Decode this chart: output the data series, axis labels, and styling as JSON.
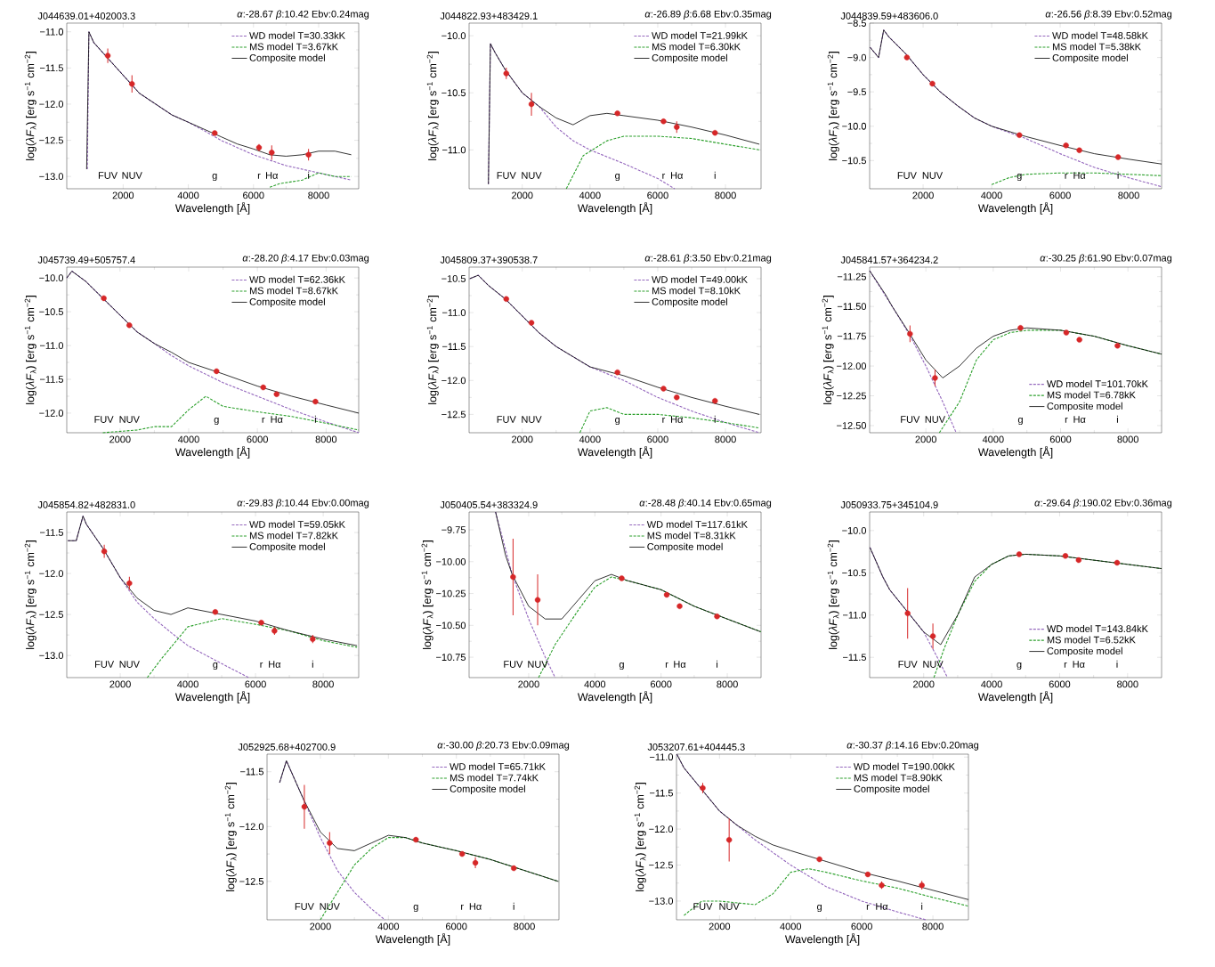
{
  "chart_data": [
    {
      "type": "line",
      "title": "J044639.01+402003.3",
      "subtitle": "*α*:-28.67 *β*:10.42 Ebv:0.24mag",
      "xlabel": "Wavelength [Å]",
      "ylabel": "log(*λF*$_{λ}$) [erg s$^{−1}$ cm$^{−2}$]",
      "xlim": [
        270,
        9230
      ],
      "ylim": [
        -13.17,
        -10.88
      ],
      "xticks": [
        2000,
        4000,
        6000,
        8000
      ],
      "yticks": [
        {
          "value": -13.0,
          "label": "−13.0"
        },
        {
          "value": -12.5,
          "label": "−12.5"
        },
        {
          "value": -12.0,
          "label": "−12.0"
        },
        {
          "value": -11.5,
          "label": "−11.5"
        },
        {
          "value": -11.0,
          "label": "−11.0"
        }
      ],
      "legend": "top right",
      "series": [
        {
          "type": "line",
          "name": "WD model T=30.33kK",
          "color": "#9467bd",
          "line_style": "dashed",
          "x": [
            900,
            950,
            1100,
            1500,
            2000,
            2500,
            3000,
            3500,
            4000,
            4500,
            5000,
            6000,
            7000,
            8000,
            9000
          ],
          "values": [
            -12.9,
            -11.0,
            -11.15,
            -11.35,
            -11.6,
            -11.85,
            -12.0,
            -12.15,
            -12.25,
            -12.37,
            -12.5,
            -12.7,
            -12.85,
            -12.95,
            -13.05
          ]
        },
        {
          "type": "line",
          "name": "MS model T=3.67kK",
          "color": "#2ca02c",
          "line_style": "dashed",
          "x": [
            6500,
            6800,
            7500,
            8000,
            8500,
            9000
          ],
          "values": [
            -13.15,
            -13.1,
            -13.05,
            -12.95,
            -13.0,
            -13.0
          ]
        },
        {
          "type": "line",
          "name": "Composite model",
          "color": "#000000",
          "line_style": "solid",
          "x": [
            880,
            950,
            1100,
            1500,
            2000,
            2500,
            3000,
            3500,
            4000,
            4500,
            5000,
            5500,
            6000,
            6500,
            7000,
            7500,
            8000,
            8500,
            9000
          ],
          "values": [
            -12.9,
            -11.0,
            -11.15,
            -11.35,
            -11.6,
            -11.85,
            -12.0,
            -12.15,
            -12.25,
            -12.35,
            -12.45,
            -12.55,
            -12.62,
            -12.7,
            -12.72,
            -12.7,
            -12.65,
            -12.65,
            -12.7
          ]
        },
        {
          "type": "scatter",
          "color": "#d62728",
          "x": [
            1528,
            2271,
            4810,
            6170,
            6560,
            7690
          ],
          "values": [
            -11.33,
            -11.72,
            -12.4,
            -12.6,
            -12.67,
            -12.7
          ],
          "errors": [
            0.1,
            0.12,
            null,
            0.05,
            0.1,
            0.08
          ]
        }
      ],
      "annotations": [
        "FUV",
        "NUV",
        "g",
        "r",
        "Hα",
        "i"
      ]
    },
    {
      "type": "line",
      "title": "J044822.93+483429.1",
      "subtitle": "*α*:-26.89 *β*:6.68 Ebv:0.35mag",
      "xlabel": "Wavelength [Å]",
      "ylabel": "log(*λF*$_{λ}$) [erg s$^{−1}$ cm$^{−2}$]",
      "xlim": [
        430,
        9050
      ],
      "ylim": [
        -11.34,
        -9.89
      ],
      "xticks": [
        2000,
        4000,
        6000,
        8000
      ],
      "yticks": [
        {
          "value": -11.0,
          "label": "−11.0"
        },
        {
          "value": -10.5,
          "label": "−10.5"
        },
        {
          "value": -10.0,
          "label": "−10.0"
        }
      ],
      "legend": "top right",
      "series": [
        {
          "type": "line",
          "name": "WD model T=21.99kK",
          "color": "#9467bd",
          "line_style": "dashed",
          "x": [
            1000,
            1060,
            1200,
            1500,
            2000,
            2500,
            3000,
            3500,
            4000,
            5000,
            6000,
            6500
          ],
          "values": [
            -11.3,
            -10.07,
            -10.15,
            -10.3,
            -10.5,
            -10.62,
            -10.8,
            -10.92,
            -11.0,
            -11.12,
            -11.25,
            -11.34
          ]
        },
        {
          "type": "line",
          "name": "MS model T=6.30kK",
          "color": "#2ca02c",
          "line_style": "dashed",
          "x": [
            3300,
            3800,
            4500,
            5000,
            6000,
            7000,
            8000,
            9000
          ],
          "values": [
            -11.34,
            -11.05,
            -10.92,
            -10.88,
            -10.88,
            -10.9,
            -10.95,
            -11.0
          ]
        },
        {
          "type": "line",
          "name": "Composite model",
          "color": "#000000",
          "line_style": "solid",
          "x": [
            1000,
            1060,
            1200,
            1500,
            2000,
            2500,
            3000,
            3500,
            4000,
            4500,
            5000,
            6000,
            7000,
            8000,
            9000
          ],
          "values": [
            -11.3,
            -10.07,
            -10.15,
            -10.3,
            -10.5,
            -10.62,
            -10.72,
            -10.78,
            -10.7,
            -10.68,
            -10.7,
            -10.74,
            -10.8,
            -10.87,
            -10.95
          ]
        },
        {
          "type": "scatter",
          "color": "#d62728",
          "x": [
            1528,
            2271,
            4810,
            6170,
            6560,
            7690
          ],
          "values": [
            -10.33,
            -10.6,
            -10.68,
            -10.75,
            -10.8,
            -10.85
          ],
          "errors": [
            0.05,
            0.1,
            null,
            null,
            0.05,
            null
          ]
        }
      ],
      "annotations": [
        "FUV",
        "NUV",
        "g",
        "r",
        "Hα",
        "i"
      ]
    },
    {
      "type": "line",
      "title": "J044839.59+483606.0",
      "subtitle": "*α*:-26.56 *β*:8.39 Ebv:0.52mag",
      "xlabel": "Wavelength [Å]",
      "ylabel": "log(*λF*$_{λ}$) [erg s$^{−1}$ cm$^{−2}$]",
      "xlim": [
        440,
        8960
      ],
      "ylim": [
        -10.91,
        -8.5
      ],
      "xticks": [
        2000,
        4000,
        6000,
        8000
      ],
      "yticks": [
        {
          "value": -10.5,
          "label": "−10.5"
        },
        {
          "value": -10.0,
          "label": "−10.0"
        },
        {
          "value": -9.5,
          "label": "−9.5"
        },
        {
          "value": -9.0,
          "label": "−9.0"
        },
        {
          "value": -8.5,
          "label": "−8.5"
        }
      ],
      "legend": "top right",
      "series": [
        {
          "type": "line",
          "name": "WD model T=48.58kK",
          "color": "#9467bd",
          "line_style": "dashed",
          "x": [
            450,
            700,
            850,
            1000,
            1500,
            2000,
            2500,
            3000,
            3500,
            4000,
            5000,
            6000,
            7000,
            8000,
            8960
          ],
          "values": [
            -8.85,
            -9.0,
            -8.6,
            -8.7,
            -8.95,
            -9.25,
            -9.5,
            -9.7,
            -9.88,
            -10.0,
            -10.18,
            -10.4,
            -10.6,
            -10.75,
            -10.88
          ]
        },
        {
          "type": "line",
          "name": "MS model T=5.38kK",
          "color": "#2ca02c",
          "line_style": "dashed",
          "x": [
            4000,
            4500,
            5000,
            6000,
            7000,
            8000,
            8960
          ],
          "values": [
            -10.85,
            -10.75,
            -10.7,
            -10.68,
            -10.68,
            -10.7,
            -10.72
          ]
        },
        {
          "type": "line",
          "name": "Composite model",
          "color": "#000000",
          "line_style": "solid",
          "x": [
            450,
            700,
            850,
            1000,
            1500,
            2000,
            2500,
            3000,
            3500,
            4000,
            5000,
            6000,
            7000,
            8000,
            8960
          ],
          "values": [
            -8.85,
            -9.0,
            -8.6,
            -8.7,
            -8.95,
            -9.25,
            -9.5,
            -9.7,
            -9.88,
            -10.0,
            -10.15,
            -10.28,
            -10.4,
            -10.48,
            -10.55
          ]
        },
        {
          "type": "scatter",
          "color": "#d62728",
          "x": [
            1528,
            2271,
            4810,
            6170,
            6560,
            7690
          ],
          "values": [
            -9.0,
            -9.38,
            -10.13,
            -10.28,
            -10.35,
            -10.45
          ],
          "errors": [
            null,
            null,
            null,
            null,
            null,
            null
          ]
        }
      ],
      "annotations": [
        "FUV",
        "NUV",
        "g",
        "r",
        "Hα",
        "i"
      ]
    },
    {
      "type": "line",
      "title": "J045739.49+505757.4",
      "subtitle": "*α*:-28.20 *β*:4.17 Ebv:0.03mag",
      "xlabel": "Wavelength [Å]",
      "ylabel": "log(*λF*$_{λ}$) [erg s$^{−1}$ cm$^{−2}$]",
      "xlim": [
        450,
        8950
      ],
      "ylim": [
        -12.29,
        -9.84
      ],
      "xticks": [
        2000,
        4000,
        6000,
        8000
      ],
      "yticks": [
        {
          "value": -12.0,
          "label": "−12.0"
        },
        {
          "value": -11.5,
          "label": "−11.5"
        },
        {
          "value": -11.0,
          "label": "−11.0"
        },
        {
          "value": -10.5,
          "label": "−10.5"
        },
        {
          "value": -10.0,
          "label": "−10.0"
        }
      ],
      "legend": "top right",
      "series": [
        {
          "type": "line",
          "name": "WD model T=62.36kK",
          "color": "#9467bd",
          "line_style": "dashed",
          "x": [
            450,
            600,
            1000,
            1500,
            2000,
            2500,
            3000,
            3500,
            4000,
            5000,
            6000,
            7000,
            8000,
            8950
          ],
          "values": [
            -10.0,
            -9.9,
            -10.05,
            -10.3,
            -10.55,
            -10.8,
            -10.97,
            -11.15,
            -11.3,
            -11.55,
            -11.75,
            -11.95,
            -12.13,
            -12.29
          ]
        },
        {
          "type": "line",
          "name": "MS model T=8.67kK",
          "color": "#2ca02c",
          "line_style": "dashed",
          "x": [
            1500,
            2500,
            3000,
            3500,
            4000,
            4500,
            5000,
            6000,
            7000,
            8000,
            8950
          ],
          "values": [
            -12.29,
            -12.25,
            -12.2,
            -12.2,
            -11.95,
            -11.75,
            -11.9,
            -11.98,
            -12.05,
            -12.15,
            -12.25
          ]
        },
        {
          "type": "line",
          "name": "Composite model",
          "color": "#000000",
          "line_style": "solid",
          "x": [
            450,
            600,
            1000,
            1500,
            2000,
            2500,
            3000,
            3500,
            4000,
            5000,
            6000,
            7000,
            8000,
            8950
          ],
          "values": [
            -10.0,
            -9.9,
            -10.05,
            -10.3,
            -10.55,
            -10.8,
            -10.97,
            -11.1,
            -11.25,
            -11.42,
            -11.6,
            -11.75,
            -11.88,
            -12.0
          ]
        },
        {
          "type": "scatter",
          "color": "#d62728",
          "x": [
            1528,
            2271,
            4810,
            6170,
            6560,
            7690
          ],
          "values": [
            -10.3,
            -10.7,
            -11.38,
            -11.62,
            -11.72,
            -11.83
          ],
          "errors": [
            null,
            null,
            null,
            null,
            null,
            null
          ]
        }
      ],
      "annotations": [
        "FUV",
        "NUV",
        "g",
        "r",
        "Hα",
        "i"
      ]
    },
    {
      "type": "line",
      "title": "J045809.37+390538.7",
      "subtitle": "*α*:-28.61 *β*:3.50 Ebv:0.21mag",
      "xlabel": "Wavelength [Å]",
      "ylabel": "log(*λF*$_{λ}$) [erg s$^{−1}$ cm$^{−2}$]",
      "xlim": [
        430,
        9050
      ],
      "ylim": [
        -12.77,
        -10.33
      ],
      "xticks": [
        2000,
        4000,
        6000,
        8000
      ],
      "yticks": [
        {
          "value": -12.5,
          "label": "−12.5"
        },
        {
          "value": -12.0,
          "label": "−12.0"
        },
        {
          "value": -11.5,
          "label": "−11.5"
        },
        {
          "value": -11.0,
          "label": "−11.0"
        },
        {
          "value": -10.5,
          "label": "−10.5"
        }
      ],
      "legend": "top right",
      "series": [
        {
          "type": "line",
          "name": "WD model T=49.00kK",
          "color": "#9467bd",
          "line_style": "dashed",
          "x": [
            450,
            700,
            1000,
            1500,
            2000,
            2500,
            3000,
            3500,
            4000,
            5000,
            6000,
            7000,
            8000,
            9000
          ],
          "values": [
            -10.5,
            -10.45,
            -10.6,
            -10.8,
            -11.05,
            -11.3,
            -11.5,
            -11.65,
            -11.8,
            -12.0,
            -12.25,
            -12.45,
            -12.62,
            -12.77
          ]
        },
        {
          "type": "line",
          "name": "MS model T=8.10kK",
          "color": "#2ca02c",
          "line_style": "dashed",
          "x": [
            3700,
            4000,
            4500,
            5000,
            6000,
            7000,
            8000,
            9000
          ],
          "values": [
            -12.77,
            -12.45,
            -12.4,
            -12.5,
            -12.5,
            -12.55,
            -12.62,
            -12.7
          ]
        },
        {
          "type": "line",
          "name": "Composite model",
          "color": "#000000",
          "line_style": "solid",
          "x": [
            450,
            700,
            1000,
            1500,
            2000,
            2500,
            3000,
            3500,
            4000,
            5000,
            6000,
            7000,
            8000,
            9000
          ],
          "values": [
            -10.5,
            -10.45,
            -10.6,
            -10.8,
            -11.05,
            -11.3,
            -11.5,
            -11.65,
            -11.8,
            -11.93,
            -12.1,
            -12.25,
            -12.38,
            -12.5
          ]
        },
        {
          "type": "scatter",
          "color": "#d62728",
          "x": [
            1528,
            2271,
            4810,
            6170,
            6560,
            7690
          ],
          "values": [
            -10.8,
            -11.15,
            -11.88,
            -12.12,
            -12.25,
            -12.3
          ],
          "errors": [
            null,
            null,
            null,
            null,
            null,
            null
          ]
        }
      ],
      "annotations": [
        "FUV",
        "NUV",
        "g",
        "r",
        "Hα",
        "i"
      ]
    },
    {
      "type": "line",
      "title": "J045841.57+364234.2",
      "subtitle": "*α*:-30.25 *β*:61.90 Ebv:0.07mag",
      "xlabel": "Wavelength [Å]",
      "ylabel": "log(*λF*$_{λ}$) [erg s$^{−1}$ cm$^{−2}$]",
      "xlim": [
        330,
        9000
      ],
      "ylim": [
        -12.56,
        -11.17
      ],
      "xticks": [
        2000,
        4000,
        6000,
        8000
      ],
      "yticks": [
        {
          "value": -12.5,
          "label": "−12.50"
        },
        {
          "value": -12.25,
          "label": "−12.25"
        },
        {
          "value": -12.0,
          "label": "−12.00"
        },
        {
          "value": -11.75,
          "label": "−11.75"
        },
        {
          "value": -11.5,
          "label": "−11.50"
        },
        {
          "value": -11.25,
          "label": "−11.25"
        }
      ],
      "legend": "bottom right",
      "series": [
        {
          "type": "line",
          "name": "WD model T=101.70kK",
          "color": "#9467bd",
          "line_style": "dashed",
          "x": [
            330,
            1000,
            1500,
            2000,
            2500,
            2900
          ],
          "values": [
            -11.2,
            -11.5,
            -11.73,
            -12.0,
            -12.3,
            -12.56
          ]
        },
        {
          "type": "line",
          "name": "MS model T=6.78kK",
          "color": "#2ca02c",
          "line_style": "dashed",
          "x": [
            2400,
            3000,
            3500,
            4000,
            4500,
            5000,
            6000,
            7000,
            8000,
            9000
          ],
          "values": [
            -12.56,
            -12.3,
            -11.95,
            -11.78,
            -11.72,
            -11.7,
            -11.7,
            -11.75,
            -11.83,
            -11.9
          ]
        },
        {
          "type": "line",
          "name": "Composite model",
          "color": "#000000",
          "line_style": "solid",
          "x": [
            330,
            800,
            1000,
            1500,
            2000,
            2500,
            3000,
            3500,
            4000,
            4500,
            5000,
            6000,
            7000,
            8000,
            9000
          ],
          "values": [
            -11.2,
            -11.4,
            -11.5,
            -11.72,
            -11.95,
            -12.1,
            -12.0,
            -11.85,
            -11.75,
            -11.7,
            -11.68,
            -11.7,
            -11.75,
            -11.83,
            -11.9
          ]
        },
        {
          "type": "scatter",
          "color": "#d62728",
          "x": [
            1528,
            2271,
            4810,
            6170,
            6560,
            7690
          ],
          "values": [
            -11.73,
            -12.1,
            -11.68,
            -11.72,
            -11.78,
            -11.83
          ],
          "errors": [
            0.07,
            0.07,
            null,
            null,
            null,
            null
          ]
        }
      ],
      "annotations": [
        "FUV",
        "NUV",
        "g",
        "r",
        "Hα",
        "i"
      ]
    },
    {
      "type": "line",
      "title": "J045854.82+482831.0",
      "subtitle": "*α*:-29.83 *β*:10.44 Ebv:0.00mag",
      "xlabel": "Wavelength [Å]",
      "ylabel": "log(*λF*$_{λ}$) [erg s$^{−1}$ cm$^{−2}$]",
      "xlim": [
        420,
        9050
      ],
      "ylim": [
        -13.27,
        -11.25
      ],
      "xticks": [
        2000,
        4000,
        6000,
        8000
      ],
      "yticks": [
        {
          "value": -13.0,
          "label": "−13.0"
        },
        {
          "value": -12.5,
          "label": "−12.5"
        },
        {
          "value": -12.0,
          "label": "−12.0"
        },
        {
          "value": -11.5,
          "label": "−11.5"
        }
      ],
      "legend": "top right",
      "series": [
        {
          "type": "line",
          "name": "WD model T=59.05kK",
          "color": "#9467bd",
          "line_style": "dashed",
          "x": [
            450,
            700,
            900,
            1000,
            1500,
            2000,
            2500,
            3000,
            3500,
            4000,
            5000,
            5800
          ],
          "values": [
            -11.6,
            -11.6,
            -11.3,
            -11.4,
            -11.7,
            -12.05,
            -12.35,
            -12.55,
            -12.72,
            -12.88,
            -13.1,
            -13.27
          ]
        },
        {
          "type": "line",
          "name": "MS model T=7.82kK",
          "color": "#2ca02c",
          "line_style": "dashed",
          "x": [
            2800,
            3200,
            3600,
            4000,
            4500,
            5000,
            6000,
            7000,
            8000,
            9000
          ],
          "values": [
            -13.27,
            -13.05,
            -12.85,
            -12.65,
            -12.6,
            -12.55,
            -12.62,
            -12.7,
            -12.82,
            -12.9
          ]
        },
        {
          "type": "line",
          "name": "Composite model",
          "color": "#000000",
          "line_style": "solid",
          "x": [
            450,
            700,
            900,
            1000,
            1500,
            2000,
            2500,
            3000,
            3500,
            4000,
            5000,
            6000,
            7000,
            8000,
            9000
          ],
          "values": [
            -11.6,
            -11.6,
            -11.3,
            -11.4,
            -11.7,
            -12.05,
            -12.3,
            -12.45,
            -12.5,
            -12.42,
            -12.5,
            -12.58,
            -12.7,
            -12.8,
            -12.88
          ]
        },
        {
          "type": "scatter",
          "color": "#d62728",
          "x": [
            1528,
            2271,
            4810,
            6170,
            6560,
            7690
          ],
          "values": [
            -11.73,
            -12.12,
            -12.47,
            -12.6,
            -12.7,
            -12.8
          ],
          "errors": [
            0.08,
            0.08,
            null,
            null,
            0.05,
            0.05
          ]
        }
      ],
      "annotations": [
        "FUV",
        "NUV",
        "g",
        "r",
        "Hα",
        "i"
      ]
    },
    {
      "type": "line",
      "title": "J050405.54+383324.9",
      "subtitle": "*α*:-28.48 *β*:40.14 Ebv:0.65mag",
      "xlabel": "Wavelength [Å]",
      "ylabel": "log(*λF*$_{λ}$) [erg s$^{−1}$ cm$^{−2}$]",
      "xlim": [
        200,
        9020
      ],
      "ylim": [
        -10.91,
        -9.61
      ],
      "xticks": [
        2000,
        4000,
        6000,
        8000
      ],
      "yticks": [
        {
          "value": -10.75,
          "label": "−10.75"
        },
        {
          "value": -10.5,
          "label": "−10.50"
        },
        {
          "value": -10.25,
          "label": "−10.25"
        },
        {
          "value": -10.0,
          "label": "−10.00"
        },
        {
          "value": -9.75,
          "label": "−9.75"
        }
      ],
      "legend": "top right",
      "series": [
        {
          "type": "line",
          "name": "WD model T=117.61kK",
          "color": "#9467bd",
          "line_style": "dashed",
          "x": [
            1000,
            1500,
            2000,
            2500,
            2800
          ],
          "values": [
            -9.61,
            -10.1,
            -10.45,
            -10.75,
            -10.91
          ]
        },
        {
          "type": "line",
          "name": "MS model T=8.31kK",
          "color": "#2ca02c",
          "line_style": "dashed",
          "x": [
            2300,
            2800,
            3500,
            4000,
            4500,
            5000,
            6000,
            7000,
            8000,
            9020
          ],
          "values": [
            -10.91,
            -10.65,
            -10.38,
            -10.2,
            -10.12,
            -10.15,
            -10.22,
            -10.35,
            -10.45,
            -10.55
          ]
        },
        {
          "type": "line",
          "name": "Composite model",
          "color": "#000000",
          "line_style": "solid",
          "x": [
            1000,
            1300,
            1500,
            2000,
            2500,
            3000,
            3500,
            4000,
            4500,
            5000,
            6000,
            7000,
            8000,
            9000
          ],
          "values": [
            -9.61,
            -9.95,
            -10.1,
            -10.35,
            -10.45,
            -10.45,
            -10.3,
            -10.15,
            -10.1,
            -10.15,
            -10.22,
            -10.35,
            -10.45,
            -10.55
          ]
        },
        {
          "type": "scatter",
          "color": "#d62728",
          "x": [
            1528,
            2271,
            4810,
            6170,
            6560,
            7690
          ],
          "values": [
            -10.12,
            -10.3,
            -10.13,
            -10.26,
            -10.35,
            -10.43
          ],
          "errors": [
            0.3,
            0.2,
            null,
            null,
            null,
            null
          ]
        }
      ],
      "annotations": [
        "FUV",
        "NUV",
        "g",
        "r",
        "Hα",
        "i"
      ]
    },
    {
      "type": "line",
      "title": "J050933.75+345104.9",
      "subtitle": "*α*:-29.64 *β*:190.02 Ebv:0.36mag",
      "xlabel": "Wavelength [Å]",
      "ylabel": "log(*λF*$_{λ}$) [erg s$^{−1}$ cm$^{−2}$]",
      "xlim": [
        410,
        9000
      ],
      "ylim": [
        -11.74,
        -9.78
      ],
      "xticks": [
        2000,
        4000,
        6000,
        8000
      ],
      "yticks": [
        {
          "value": -11.5,
          "label": "−11.5"
        },
        {
          "value": -11.0,
          "label": "−11.0"
        },
        {
          "value": -10.5,
          "label": "−10.5"
        },
        {
          "value": -10.0,
          "label": "−10.0"
        }
      ],
      "legend": "bottom right",
      "series": [
        {
          "type": "line",
          "name": "WD model T=143.84kK",
          "color": "#9467bd",
          "line_style": "dashed",
          "x": [
            420,
            800,
            1000,
            1500,
            2000,
            2400,
            2700
          ],
          "values": [
            -10.2,
            -10.55,
            -10.7,
            -10.95,
            -11.2,
            -11.5,
            -11.74
          ]
        },
        {
          "type": "line",
          "name": "MS model T=6.52kK",
          "color": "#2ca02c",
          "line_style": "dashed",
          "x": [
            2300,
            2600,
            3000,
            3500,
            4000,
            4500,
            5000,
            6000,
            7000,
            8000,
            9000
          ],
          "values": [
            -11.74,
            -11.4,
            -11.0,
            -10.6,
            -10.4,
            -10.3,
            -10.28,
            -10.3,
            -10.35,
            -10.4,
            -10.45
          ]
        },
        {
          "type": "line",
          "name": "Composite model",
          "color": "#000000",
          "line_style": "solid",
          "x": [
            420,
            800,
            1000,
            1500,
            2000,
            2500,
            3000,
            3500,
            4000,
            4500,
            5000,
            6000,
            7000,
            8000,
            9000
          ],
          "values": [
            -10.2,
            -10.55,
            -10.7,
            -10.95,
            -11.2,
            -11.35,
            -11.0,
            -10.55,
            -10.4,
            -10.3,
            -10.28,
            -10.3,
            -10.35,
            -10.4,
            -10.45
          ]
        },
        {
          "type": "scatter",
          "color": "#d62728",
          "x": [
            1528,
            2271,
            4810,
            6170,
            6560,
            7690
          ],
          "values": [
            -10.98,
            -11.25,
            -10.28,
            -10.3,
            -10.35,
            -10.38
          ],
          "errors": [
            0.3,
            0.15,
            null,
            null,
            null,
            null
          ]
        }
      ],
      "annotations": [
        "FUV",
        "NUV",
        "g",
        "r",
        "Hα",
        "i"
      ]
    },
    {
      "type": "line",
      "title": "J052925.68+402700.9",
      "subtitle": "*α*:-30.00 *β*:20.73 Ebv:0.09mag",
      "xlabel": "Wavelength [Å]",
      "ylabel": "log(*λF*$_{λ}$) [erg s$^{−1}$ cm$^{−2}$]",
      "xlim": [
        430,
        9020
      ],
      "ylim": [
        -12.85,
        -11.34
      ],
      "xticks": [
        2000,
        4000,
        6000,
        8000
      ],
      "yticks": [
        {
          "value": -12.5,
          "label": "−12.5"
        },
        {
          "value": -12.0,
          "label": "−12.0"
        },
        {
          "value": -11.5,
          "label": "−11.5"
        }
      ],
      "legend": "top right",
      "series": [
        {
          "type": "line",
          "name": "WD model T=65.71kK",
          "color": "#9467bd",
          "line_style": "dashed",
          "x": [
            800,
            1000,
            1500,
            2000,
            2500,
            3000,
            3500,
            3900
          ],
          "values": [
            -11.6,
            -11.4,
            -11.75,
            -12.1,
            -12.4,
            -12.6,
            -12.75,
            -12.85
          ]
        },
        {
          "type": "line",
          "name": "MS model T=7.74kK",
          "color": "#2ca02c",
          "line_style": "dashed",
          "x": [
            2000,
            2500,
            3000,
            3500,
            4000,
            4500,
            5000,
            6000,
            7000,
            8000,
            9000
          ],
          "values": [
            -12.85,
            -12.6,
            -12.35,
            -12.2,
            -12.1,
            -12.1,
            -12.15,
            -12.22,
            -12.3,
            -12.4,
            -12.5
          ]
        },
        {
          "type": "line",
          "name": "Composite model",
          "color": "#000000",
          "line_style": "solid",
          "x": [
            800,
            1000,
            1500,
            2000,
            2500,
            3000,
            3500,
            4000,
            4500,
            5000,
            6000,
            7000,
            8000,
            9000
          ],
          "values": [
            -11.6,
            -11.4,
            -11.75,
            -12.05,
            -12.2,
            -12.22,
            -12.15,
            -12.08,
            -12.1,
            -12.15,
            -12.22,
            -12.3,
            -12.4,
            -12.5
          ]
        },
        {
          "type": "scatter",
          "color": "#d62728",
          "x": [
            1528,
            2271,
            4810,
            6170,
            6560,
            7690
          ],
          "values": [
            -11.82,
            -12.15,
            -12.12,
            -12.25,
            -12.33,
            -12.38
          ],
          "errors": [
            0.2,
            0.1,
            null,
            null,
            0.05,
            null
          ]
        }
      ],
      "annotations": [
        "FUV",
        "NUV",
        "g",
        "r",
        "Hα",
        "i"
      ]
    },
    {
      "type": "line",
      "title": "J053207.61+404445.3",
      "subtitle": "*α*:-30.37 *β*:14.16 Ebv:0.20mag",
      "xlabel": "Wavelength [Å]",
      "ylabel": "log(*λF*$_{λ}$) [erg s$^{−1}$ cm$^{−2}$]",
      "xlim": [
        790,
        9000
      ],
      "ylim": [
        -13.26,
        -10.96
      ],
      "xticks": [
        2000,
        4000,
        6000,
        8000
      ],
      "yticks": [
        {
          "value": -13.0,
          "label": "−13.0"
        },
        {
          "value": -12.5,
          "label": "−12.5"
        },
        {
          "value": -12.0,
          "label": "−12.0"
        },
        {
          "value": -11.5,
          "label": "−11.5"
        },
        {
          "value": -11.0,
          "label": "−11.0"
        }
      ],
      "legend": "top right",
      "series": [
        {
          "type": "line",
          "name": "WD model T=190.00kK",
          "color": "#9467bd",
          "line_style": "dashed",
          "x": [
            800,
            1000,
            1500,
            2000,
            2500,
            3000,
            4000,
            5000,
            6000,
            7000,
            7800
          ],
          "values": [
            -10.96,
            -11.15,
            -11.45,
            -11.75,
            -11.95,
            -12.15,
            -12.5,
            -12.8,
            -13.0,
            -13.15,
            -13.26
          ]
        },
        {
          "type": "line",
          "name": "MS model T=8.90kK",
          "color": "#2ca02c",
          "line_style": "dashed",
          "x": [
            1000,
            1500,
            2000,
            3000,
            3500,
            4000,
            4500,
            5000,
            6000,
            7000,
            8000,
            9000
          ],
          "values": [
            -13.2,
            -13.0,
            -13.0,
            -13.05,
            -12.9,
            -12.6,
            -12.55,
            -12.6,
            -12.72,
            -12.82,
            -12.95,
            -13.07
          ]
        },
        {
          "type": "line",
          "name": "Composite model",
          "color": "#000000",
          "line_style": "solid",
          "x": [
            800,
            1000,
            1500,
            2000,
            2500,
            3000,
            3500,
            4000,
            5000,
            6000,
            7000,
            8000,
            9000
          ],
          "values": [
            -10.96,
            -11.15,
            -11.45,
            -11.75,
            -11.95,
            -12.1,
            -12.22,
            -12.3,
            -12.45,
            -12.6,
            -12.72,
            -12.85,
            -12.98
          ]
        },
        {
          "type": "scatter",
          "color": "#d62728",
          "x": [
            1528,
            2271,
            4810,
            6170,
            6560,
            7690
          ],
          "values": [
            -11.43,
            -12.15,
            -12.42,
            -12.63,
            -12.78,
            -12.78
          ],
          "errors": [
            0.07,
            0.3,
            null,
            null,
            0.05,
            0.06
          ]
        }
      ],
      "annotations": [
        "FUV",
        "NUV",
        "g",
        "r",
        "Hα",
        "i"
      ]
    }
  ]
}
